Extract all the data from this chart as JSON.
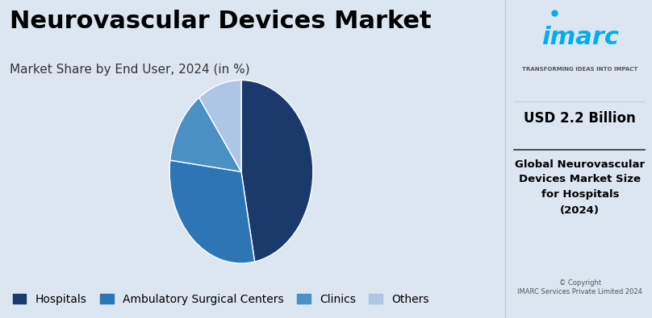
{
  "title": "Neurovascular Devices Market",
  "subtitle": "Market Share by End User, 2024 (in %)",
  "segments": [
    "Hospitals",
    "Ambulatory Surgical Centers",
    "Clinics",
    "Others"
  ],
  "values": [
    47,
    30,
    13,
    10
  ],
  "colors": [
    "#1b3a6b",
    "#2e75b6",
    "#4a90c4",
    "#adc6e5"
  ],
  "background_color": "#dce6f1",
  "right_panel_color": "#ffffff",
  "title_fontsize": 22,
  "subtitle_fontsize": 11,
  "legend_fontsize": 10,
  "right_text_bold": "USD 2.2 Billion",
  "right_text_body": "Global Neurovascular\nDevices Market Size\nfor Hospitals\n(2024)",
  "copyright_text": "© Copyright\nIMARC Services Private Limited 2024",
  "start_angle": 90
}
